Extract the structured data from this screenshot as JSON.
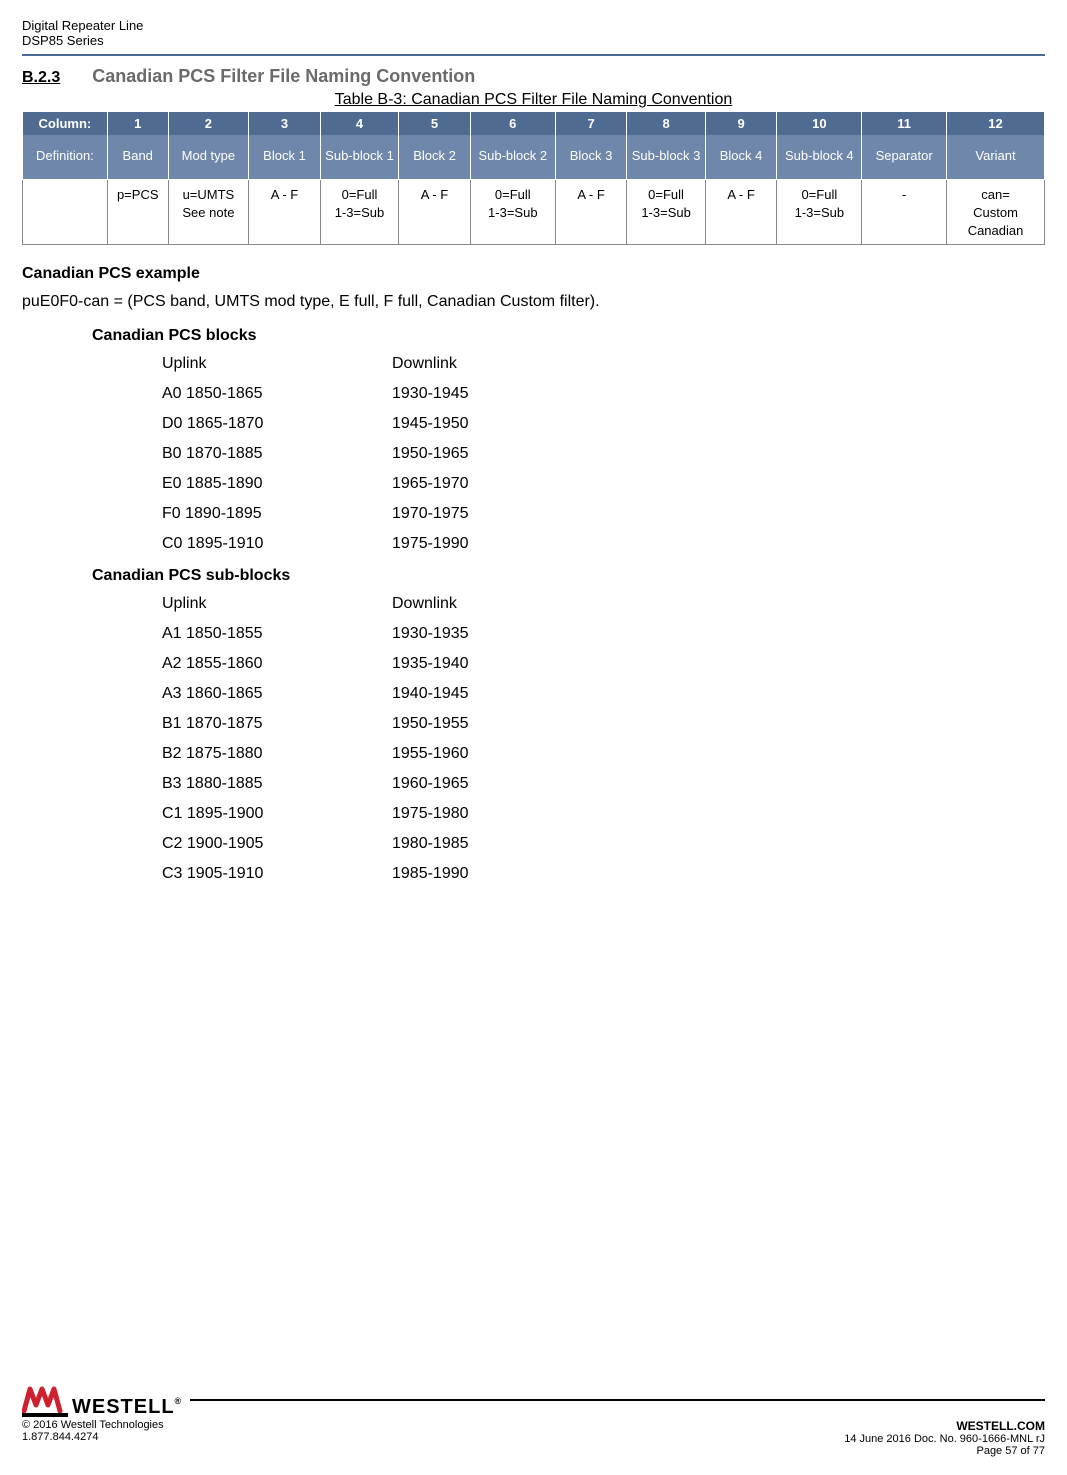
{
  "doc_header": {
    "line1": "Digital Repeater Line",
    "line2": "DSP85 Series"
  },
  "section": {
    "number": "B.2.3",
    "title": "Canadian PCS Filter File Naming Convention"
  },
  "table": {
    "caption": "Table B-3: Canadian PCS Filter File Naming Convention",
    "head_label": "Column:",
    "def_label": "Definition:",
    "cols": [
      "1",
      "2",
      "3",
      "4",
      "5",
      "6",
      "7",
      "8",
      "9",
      "10",
      "11",
      "12"
    ],
    "defs": [
      "Band",
      "Mod type",
      "Block 1",
      "Sub-block 1",
      "Block 2",
      "Sub-block 2",
      "Block 3",
      "Sub-block 3",
      "Block 4",
      "Sub-block 4",
      "Separator",
      "Variant"
    ],
    "values": [
      "",
      "p=PCS",
      "u=UMTS\nSee note",
      "A - F",
      "0=Full\n1-3=Sub",
      "A - F",
      "0=Full\n1-3=Sub",
      "A - F",
      "0=Full\n1-3=Sub",
      "A - F",
      "0=Full\n1-3=Sub",
      "-",
      "can=\nCustom\nCanadian"
    ],
    "header_bg": "#4f6b92",
    "def_bg": "#6e87aa",
    "header_text_color": "#ffffff"
  },
  "example": {
    "heading": "Canadian PCS example",
    "line": "puE0F0-can = (PCS band, UMTS mod type, E full, F full, Canadian Custom filter)."
  },
  "blocks_heading": "Canadian PCS blocks",
  "blocks_header": {
    "left": "Uplink",
    "right": "Downlink"
  },
  "blocks": [
    {
      "left": "A0 1850-1865",
      "right": "1930-1945"
    },
    {
      "left": "D0 1865-1870",
      "right": "1945-1950"
    },
    {
      "left": "B0 1870-1885",
      "right": "1950-1965"
    },
    {
      "left": "E0 1885-1890",
      "right": "1965-1970"
    },
    {
      "left": "F0 1890-1895",
      "right": "1970-1975"
    },
    {
      "left": "C0 1895-1910",
      "right": "1975-1990"
    }
  ],
  "subblocks_heading": "Canadian PCS sub-blocks",
  "subblocks_header": {
    "left": "Uplink",
    "right": "Downlink"
  },
  "subblocks": [
    {
      "left": "A1 1850-1855",
      "right": "1930-1935"
    },
    {
      "left": "A2 1855-1860",
      "right": "1935-1940"
    },
    {
      "left": "A3 1860-1865",
      "right": "1940-1945"
    },
    {
      "left": "B1 1870-1875",
      "right": "1950-1955"
    },
    {
      "left": "B2 1875-1880",
      "right": "1955-1960"
    },
    {
      "left": "B3 1880-1885",
      "right": "1960-1965"
    },
    {
      "left": "C1 1895-1900",
      "right": "1975-1980"
    },
    {
      "left": "C2 1900-1905",
      "right": "1980-1985"
    },
    {
      "left": "C3 1905-1910",
      "right": "1985-1990"
    }
  ],
  "footer": {
    "logo_text": "WESTELL",
    "site": "WESTELL.COM",
    "copyright": "© 2016 Westell Technologies",
    "docinfo": "14 June 2016 Doc. No. 960-1666-MNL rJ",
    "phone": "1.877.844.4274",
    "page": "Page 57 of 77",
    "logo_red": "#d01f2e"
  }
}
